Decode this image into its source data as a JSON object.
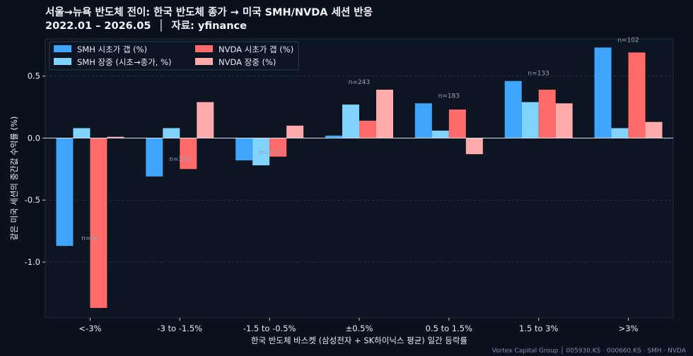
{
  "title_line1": "서울→뉴욕 반도체 전이: 한국 반도체 종가 → 미국 SMH/NVDA 세션 반응",
  "title_line2": "2022.01 – 2026.05  │  자료: yfinance",
  "footer": "Vortex Capital Group  │  005930.KS · 000660.KS · SMH · NVDA",
  "colors": {
    "background": "#0b111c",
    "plot_background": "#0d1522",
    "smh_gap": "#3fa5fa",
    "smh_intraday": "#80d3fc",
    "nvda_gap": "#ff6b6b",
    "nvda_intraday": "#ffabab"
  },
  "chart_data": {
    "type": "bar",
    "xlabel": "한국 반도체 바스켓 (삼성전자 + SK하이닉스 평균) 일간 등락률",
    "ylabel": "같은 미국 세션의 중간값 수익률 (%)",
    "ylim": [
      -1.45,
      0.8
    ],
    "yticks": [
      -1.0,
      -0.5,
      0.0,
      0.5
    ],
    "ytick_labels": [
      "-1.0",
      "-0.5",
      "0.0",
      "0.5"
    ],
    "grid": "horizontal dashed",
    "legend_position": "top-left",
    "categories": [
      "<-3%",
      "-3 to -1.5%",
      "-1.5 to -0.5%",
      "±0.5%",
      "0.5 to 1.5%",
      "1.5 to 3%",
      ">3%"
    ],
    "counts": [
      "n=60",
      "n=130",
      "n=173",
      "n=243",
      "n=183",
      "n=133",
      "n=102"
    ],
    "series": [
      {
        "name": "SMH 시초가 갭 (%)",
        "values": [
          -0.87,
          -0.31,
          -0.18,
          0.02,
          0.28,
          0.46,
          0.73
        ]
      },
      {
        "name": "SMH 장중 (시초→종가, %)",
        "values": [
          0.08,
          0.08,
          -0.22,
          0.27,
          0.06,
          0.29,
          0.08
        ]
      },
      {
        "name": "NVDA 시초가 갭 (%)",
        "values": [
          -1.37,
          -0.25,
          -0.15,
          0.14,
          0.23,
          0.39,
          0.69
        ]
      },
      {
        "name": "NVDA 장중 (%)",
        "values": [
          0.01,
          0.29,
          0.1,
          0.39,
          -0.13,
          0.28,
          0.13
        ]
      }
    ]
  }
}
